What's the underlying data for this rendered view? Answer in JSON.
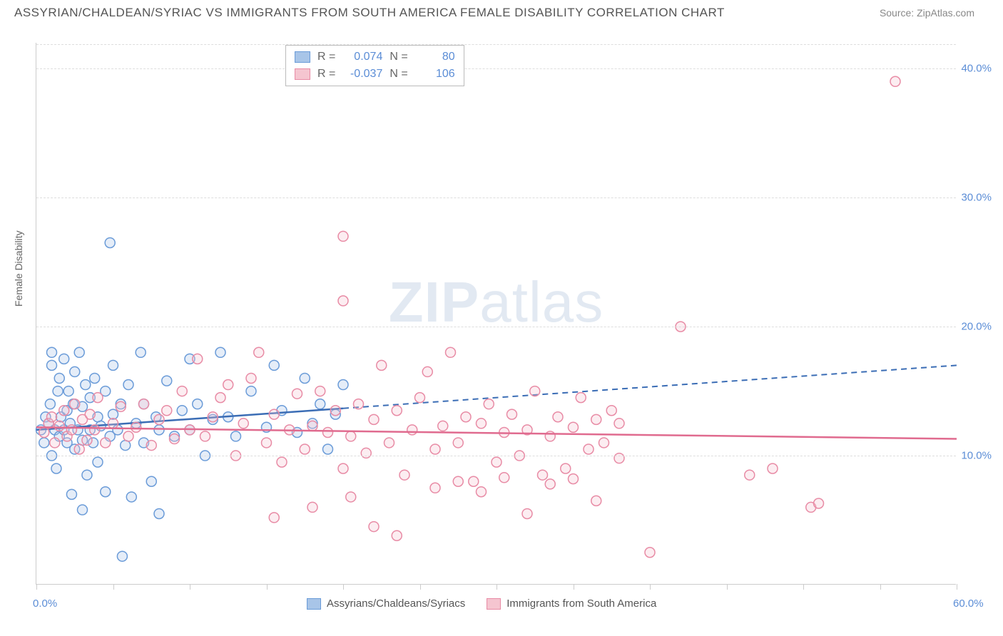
{
  "header": {
    "title": "ASSYRIAN/CHALDEAN/SYRIAC VS IMMIGRANTS FROM SOUTH AMERICA FEMALE DISABILITY CORRELATION CHART",
    "source": "Source: ZipAtlas.com"
  },
  "y_axis_label": "Female Disability",
  "watermark": {
    "bold": "ZIP",
    "light": "atlas"
  },
  "chart": {
    "type": "scatter",
    "xlim": [
      0,
      60
    ],
    "ylim": [
      0,
      42
    ],
    "x_ticks": [
      0,
      5,
      10,
      15,
      20,
      25,
      30,
      35,
      40,
      45,
      50,
      55,
      60
    ],
    "x_tick_labels": {
      "0": "0.0%",
      "60": "60.0%"
    },
    "y_gridlines": [
      10,
      20,
      30,
      40
    ],
    "y_tick_labels": {
      "10": "10.0%",
      "20": "20.0%",
      "30": "30.0%",
      "40": "40.0%"
    },
    "background_color": "#ffffff",
    "grid_color": "#dddddd",
    "axis_color": "#cccccc",
    "tick_label_color": "#5b8dd6",
    "marker_radius": 7,
    "marker_stroke_width": 1.5,
    "marker_fill_opacity": 0.3,
    "trendline_width": 2.5,
    "series": [
      {
        "name": "Assyrians/Chaldeans/Syriacs",
        "color_fill": "#a8c5e8",
        "color_stroke": "#6a9bd8",
        "trend_color": "#3b6db5",
        "trend_solid_xmax": 20,
        "trend": {
          "y_at_x0": 12.0,
          "y_at_x60": 17.0
        },
        "points": [
          [
            0.3,
            12
          ],
          [
            0.5,
            11
          ],
          [
            0.6,
            13
          ],
          [
            0.8,
            12.5
          ],
          [
            0.9,
            14
          ],
          [
            1.0,
            10
          ],
          [
            1.0,
            17
          ],
          [
            1.0,
            18
          ],
          [
            1.2,
            12
          ],
          [
            1.3,
            9
          ],
          [
            1.4,
            15
          ],
          [
            1.5,
            11.5
          ],
          [
            1.5,
            16
          ],
          [
            1.6,
            13
          ],
          [
            1.8,
            12
          ],
          [
            1.8,
            17.5
          ],
          [
            2.0,
            11
          ],
          [
            2.0,
            13.5
          ],
          [
            2.1,
            15
          ],
          [
            2.2,
            12.5
          ],
          [
            2.3,
            7
          ],
          [
            2.4,
            14
          ],
          [
            2.5,
            10.5
          ],
          [
            2.5,
            16.5
          ],
          [
            2.7,
            12
          ],
          [
            2.8,
            18
          ],
          [
            3.0,
            11.2
          ],
          [
            3.0,
            13.8
          ],
          [
            3.2,
            15.5
          ],
          [
            3.3,
            8.5
          ],
          [
            3.5,
            12
          ],
          [
            3.5,
            14.5
          ],
          [
            3.7,
            11
          ],
          [
            3.8,
            16
          ],
          [
            4.0,
            13
          ],
          [
            4.0,
            9.5
          ],
          [
            4.2,
            12.3
          ],
          [
            4.5,
            15
          ],
          [
            4.5,
            7.2
          ],
          [
            4.8,
            11.5
          ],
          [
            5.0,
            13.2
          ],
          [
            5.0,
            17
          ],
          [
            5.3,
            12
          ],
          [
            5.5,
            14
          ],
          [
            5.6,
            2.2
          ],
          [
            5.8,
            10.8
          ],
          [
            6.0,
            15.5
          ],
          [
            6.5,
            12.5
          ],
          [
            6.8,
            18
          ],
          [
            7.0,
            11
          ],
          [
            7.0,
            14
          ],
          [
            7.5,
            8
          ],
          [
            7.8,
            13
          ],
          [
            8.0,
            12
          ],
          [
            8.5,
            15.8
          ],
          [
            9.0,
            11.5
          ],
          [
            9.5,
            13.5
          ],
          [
            10.0,
            12
          ],
          [
            10.0,
            17.5
          ],
          [
            10.5,
            14
          ],
          [
            11.0,
            10
          ],
          [
            11.5,
            12.8
          ],
          [
            12.0,
            18
          ],
          [
            12.5,
            13
          ],
          [
            13.0,
            11.5
          ],
          [
            14.0,
            15
          ],
          [
            15.0,
            12.2
          ],
          [
            15.5,
            17
          ],
          [
            16.0,
            13.5
          ],
          [
            17.0,
            11.8
          ],
          [
            17.5,
            16
          ],
          [
            18.0,
            12.5
          ],
          [
            18.5,
            14
          ],
          [
            19.0,
            10.5
          ],
          [
            19.5,
            13.2
          ],
          [
            20.0,
            15.5
          ],
          [
            4.8,
            26.5
          ],
          [
            6.2,
            6.8
          ],
          [
            8.0,
            5.5
          ],
          [
            3.0,
            5.8
          ]
        ]
      },
      {
        "name": "Immigrants from South America",
        "color_fill": "#f5c5d0",
        "color_stroke": "#e88ba5",
        "trend_color": "#e06b8f",
        "trend_solid_xmax": 60,
        "trend": {
          "y_at_x0": 12.2,
          "y_at_x60": 11.3
        },
        "points": [
          [
            0.5,
            11.8
          ],
          [
            0.8,
            12.5
          ],
          [
            1.0,
            13
          ],
          [
            1.2,
            11
          ],
          [
            1.5,
            12.3
          ],
          [
            1.8,
            13.5
          ],
          [
            2.0,
            11.5
          ],
          [
            2.3,
            12
          ],
          [
            2.5,
            14
          ],
          [
            2.8,
            10.5
          ],
          [
            3.0,
            12.8
          ],
          [
            3.3,
            11.2
          ],
          [
            3.5,
            13.2
          ],
          [
            3.8,
            12
          ],
          [
            4.0,
            14.5
          ],
          [
            4.5,
            11
          ],
          [
            5.0,
            12.5
          ],
          [
            5.5,
            13.8
          ],
          [
            6.0,
            11.5
          ],
          [
            6.5,
            12.2
          ],
          [
            7.0,
            14
          ],
          [
            7.5,
            10.8
          ],
          [
            8.0,
            12.8
          ],
          [
            8.5,
            13.5
          ],
          [
            9.0,
            11.3
          ],
          [
            9.5,
            15
          ],
          [
            10.0,
            12
          ],
          [
            10.5,
            17.5
          ],
          [
            11.0,
            11.5
          ],
          [
            11.5,
            13
          ],
          [
            12.0,
            14.5
          ],
          [
            12.5,
            15.5
          ],
          [
            13.0,
            10
          ],
          [
            13.5,
            12.5
          ],
          [
            14.0,
            16
          ],
          [
            14.5,
            18
          ],
          [
            15.0,
            11
          ],
          [
            15.5,
            13.2
          ],
          [
            16.0,
            9.5
          ],
          [
            16.5,
            12
          ],
          [
            17.0,
            14.8
          ],
          [
            17.5,
            10.5
          ],
          [
            18.0,
            12.3
          ],
          [
            18.5,
            15
          ],
          [
            19.0,
            11.8
          ],
          [
            19.5,
            13.5
          ],
          [
            20.0,
            9
          ],
          [
            20.0,
            27
          ],
          [
            20.5,
            11.5
          ],
          [
            21.0,
            14
          ],
          [
            21.5,
            10.2
          ],
          [
            22.0,
            12.8
          ],
          [
            22.5,
            17
          ],
          [
            23.0,
            11
          ],
          [
            23.5,
            13.5
          ],
          [
            24.0,
            8.5
          ],
          [
            24.5,
            12
          ],
          [
            25.0,
            14.5
          ],
          [
            25.5,
            16.5
          ],
          [
            26.0,
            10.5
          ],
          [
            26.5,
            12.3
          ],
          [
            27.0,
            18
          ],
          [
            27.5,
            11
          ],
          [
            28.0,
            13
          ],
          [
            28.5,
            8
          ],
          [
            29.0,
            12.5
          ],
          [
            29.5,
            14
          ],
          [
            30.0,
            9.5
          ],
          [
            30.5,
            11.8
          ],
          [
            31.0,
            13.2
          ],
          [
            31.5,
            10
          ],
          [
            32.0,
            12
          ],
          [
            32.5,
            15
          ],
          [
            33.0,
            8.5
          ],
          [
            33.5,
            11.5
          ],
          [
            34.0,
            13
          ],
          [
            34.5,
            9
          ],
          [
            35.0,
            12.2
          ],
          [
            35.5,
            14.5
          ],
          [
            36.0,
            10.5
          ],
          [
            36.5,
            12.8
          ],
          [
            37.0,
            11
          ],
          [
            37.5,
            13.5
          ],
          [
            38.0,
            9.8
          ],
          [
            20.0,
            22
          ],
          [
            22.0,
            4.5
          ],
          [
            23.5,
            3.8
          ],
          [
            26.0,
            7.5
          ],
          [
            27.5,
            8
          ],
          [
            29.0,
            7.2
          ],
          [
            30.5,
            8.3
          ],
          [
            32.0,
            5.5
          ],
          [
            33.5,
            7.8
          ],
          [
            35.0,
            8.2
          ],
          [
            36.5,
            6.5
          ],
          [
            42.0,
            20
          ],
          [
            40.0,
            2.5
          ],
          [
            46.5,
            8.5
          ],
          [
            48.0,
            9
          ],
          [
            50.5,
            6
          ],
          [
            51.0,
            6.3
          ],
          [
            56.0,
            39
          ],
          [
            15.5,
            5.2
          ],
          [
            18.0,
            6
          ],
          [
            20.5,
            6.8
          ],
          [
            38.0,
            12.5
          ]
        ]
      }
    ]
  },
  "stats": {
    "rows": [
      {
        "swatch_fill": "#a8c5e8",
        "swatch_stroke": "#6a9bd8",
        "r_label": "R =",
        "r": "0.074",
        "n_label": "N =",
        "n": "80"
      },
      {
        "swatch_fill": "#f5c5d0",
        "swatch_stroke": "#e88ba5",
        "r_label": "R =",
        "r": "-0.037",
        "n_label": "N =",
        "n": "106"
      }
    ]
  },
  "legend": {
    "items": [
      {
        "swatch_fill": "#a8c5e8",
        "swatch_stroke": "#6a9bd8",
        "label": "Assyrians/Chaldeans/Syriacs"
      },
      {
        "swatch_fill": "#f5c5d0",
        "swatch_stroke": "#e88ba5",
        "label": "Immigrants from South America"
      }
    ]
  }
}
